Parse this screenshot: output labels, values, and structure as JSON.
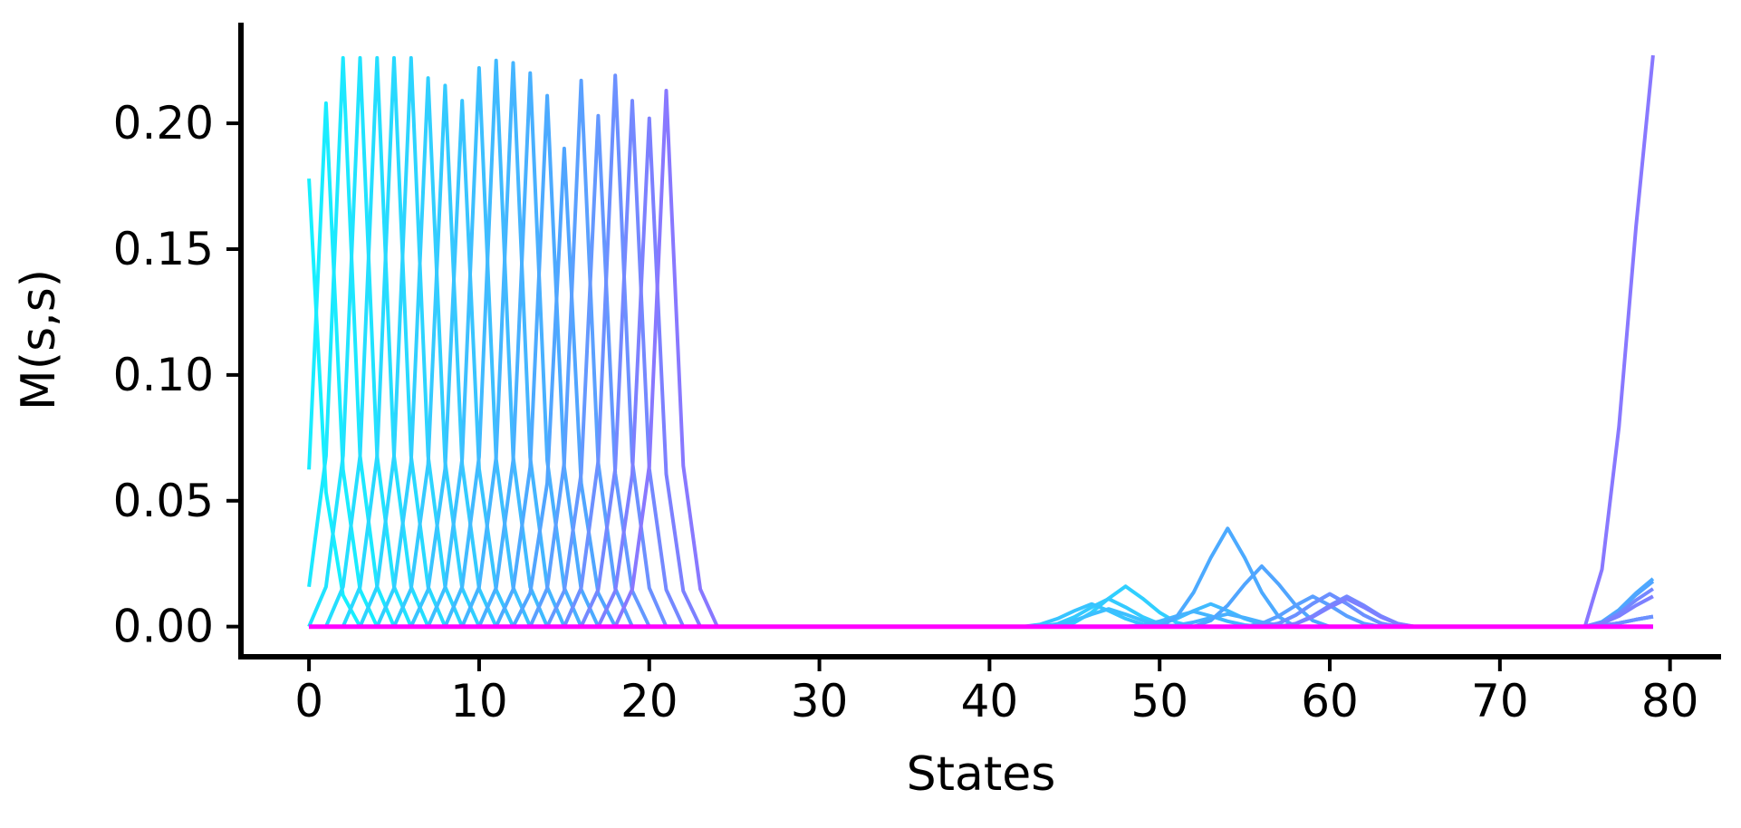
{
  "chart_data": {
    "type": "line",
    "xlabel": "States",
    "ylabel": "M(s,s)",
    "xlim": [
      -4,
      83
    ],
    "ylim": [
      -0.012,
      0.24
    ],
    "xticks": [
      {
        "value": 0,
        "label": "0"
      },
      {
        "value": 10,
        "label": "10"
      },
      {
        "value": 20,
        "label": "20"
      },
      {
        "value": 30,
        "label": "30"
      },
      {
        "value": 40,
        "label": "40"
      },
      {
        "value": 50,
        "label": "50"
      },
      {
        "value": 60,
        "label": "60"
      },
      {
        "value": 70,
        "label": "70"
      },
      {
        "value": 80,
        "label": "80"
      }
    ],
    "yticks": [
      {
        "value": 0.0,
        "label": "0.00"
      },
      {
        "value": 0.05,
        "label": "0.05"
      },
      {
        "value": 0.1,
        "label": "0.10"
      },
      {
        "value": 0.15,
        "label": "0.15"
      },
      {
        "value": 0.2,
        "label": "0.20"
      }
    ],
    "x_start": 0,
    "x_end": 79,
    "grid": false,
    "colormap": "cool (cyan to magenta)",
    "series": [
      {
        "color": "#16f0ff",
        "peak_x": 0,
        "peak_y": 0.178,
        "late": []
      },
      {
        "color": "#19ecff",
        "peak_x": 1,
        "peak_y": 0.208,
        "late": []
      },
      {
        "color": "#1ce8ff",
        "peak_x": 2,
        "peak_y": 0.226,
        "late": []
      },
      {
        "color": "#20e3ff",
        "peak_x": 3,
        "peak_y": 0.226,
        "late": []
      },
      {
        "color": "#24deff",
        "peak_x": 4,
        "peak_y": 0.226,
        "late": []
      },
      {
        "color": "#28d9ff",
        "peak_x": 5,
        "peak_y": 0.226,
        "late": []
      },
      {
        "color": "#2cd4ff",
        "peak_x": 6,
        "peak_y": 0.226,
        "late": []
      },
      {
        "color": "#30cfff",
        "peak_x": 7,
        "peak_y": 0.218,
        "late": [
          {
            "x": 48,
            "y": 0.016
          }
        ]
      },
      {
        "color": "#34caff",
        "peak_x": 8,
        "peak_y": 0.215,
        "late": [
          {
            "x": 47,
            "y": 0.011
          }
        ]
      },
      {
        "color": "#38c4ff",
        "peak_x": 9,
        "peak_y": 0.209,
        "late": [
          {
            "x": 46,
            "y": 0.009
          }
        ]
      },
      {
        "color": "#3cbfff",
        "peak_x": 10,
        "peak_y": 0.222,
        "late": [
          {
            "x": 47,
            "y": 0.007
          }
        ]
      },
      {
        "color": "#40baff",
        "peak_x": 11,
        "peak_y": 0.225,
        "late": [
          {
            "x": 53,
            "y": 0.009
          }
        ]
      },
      {
        "color": "#44b5ff",
        "peak_x": 12,
        "peak_y": 0.224,
        "late": [
          {
            "x": 52,
            "y": 0.006
          }
        ]
      },
      {
        "color": "#48b0ff",
        "peak_x": 13,
        "peak_y": 0.22,
        "late": [
          {
            "x": 54,
            "y": 0.005
          }
        ]
      },
      {
        "color": "#4caaff",
        "peak_x": 14,
        "peak_y": 0.211,
        "late": [
          {
            "x": 54,
            "y": 0.039
          },
          {
            "x": 79,
            "y": 0.019
          }
        ]
      },
      {
        "color": "#50a5ff",
        "peak_x": 15,
        "peak_y": 0.19,
        "late": [
          {
            "x": 56,
            "y": 0.024
          },
          {
            "x": 79,
            "y": 0.018
          }
        ]
      },
      {
        "color": "#5aa0ff",
        "peak_x": 16,
        "peak_y": 0.217,
        "late": [
          {
            "x": 59,
            "y": 0.012
          },
          {
            "x": 79,
            "y": 0.004
          }
        ]
      },
      {
        "color": "#6498ff",
        "peak_x": 17,
        "peak_y": 0.203,
        "late": [
          {
            "x": 60,
            "y": 0.013
          },
          {
            "x": 79,
            "y": 0.004
          }
        ]
      },
      {
        "color": "#6c90ff",
        "peak_x": 18,
        "peak_y": 0.219,
        "late": [
          {
            "x": 60,
            "y": 0.013
          },
          {
            "x": 79,
            "y": 0.004
          }
        ]
      },
      {
        "color": "#7488ff",
        "peak_x": 19,
        "peak_y": 0.209,
        "late": [
          {
            "x": 61,
            "y": 0.012
          },
          {
            "x": 79,
            "y": 0.015
          }
        ]
      },
      {
        "color": "#7c80ff",
        "peak_x": 20,
        "peak_y": 0.202,
        "late": [
          {
            "x": 61,
            "y": 0.011
          },
          {
            "x": 79,
            "y": 0.012
          }
        ]
      },
      {
        "color": "#8878ff",
        "peak_x": 21,
        "peak_y": 0.213,
        "late": [
          {
            "x": 79,
            "y": 0.227
          }
        ]
      },
      {
        "color": "#ff00ff",
        "peak_x": 0,
        "peak_y": 0.0,
        "late": []
      }
    ]
  }
}
